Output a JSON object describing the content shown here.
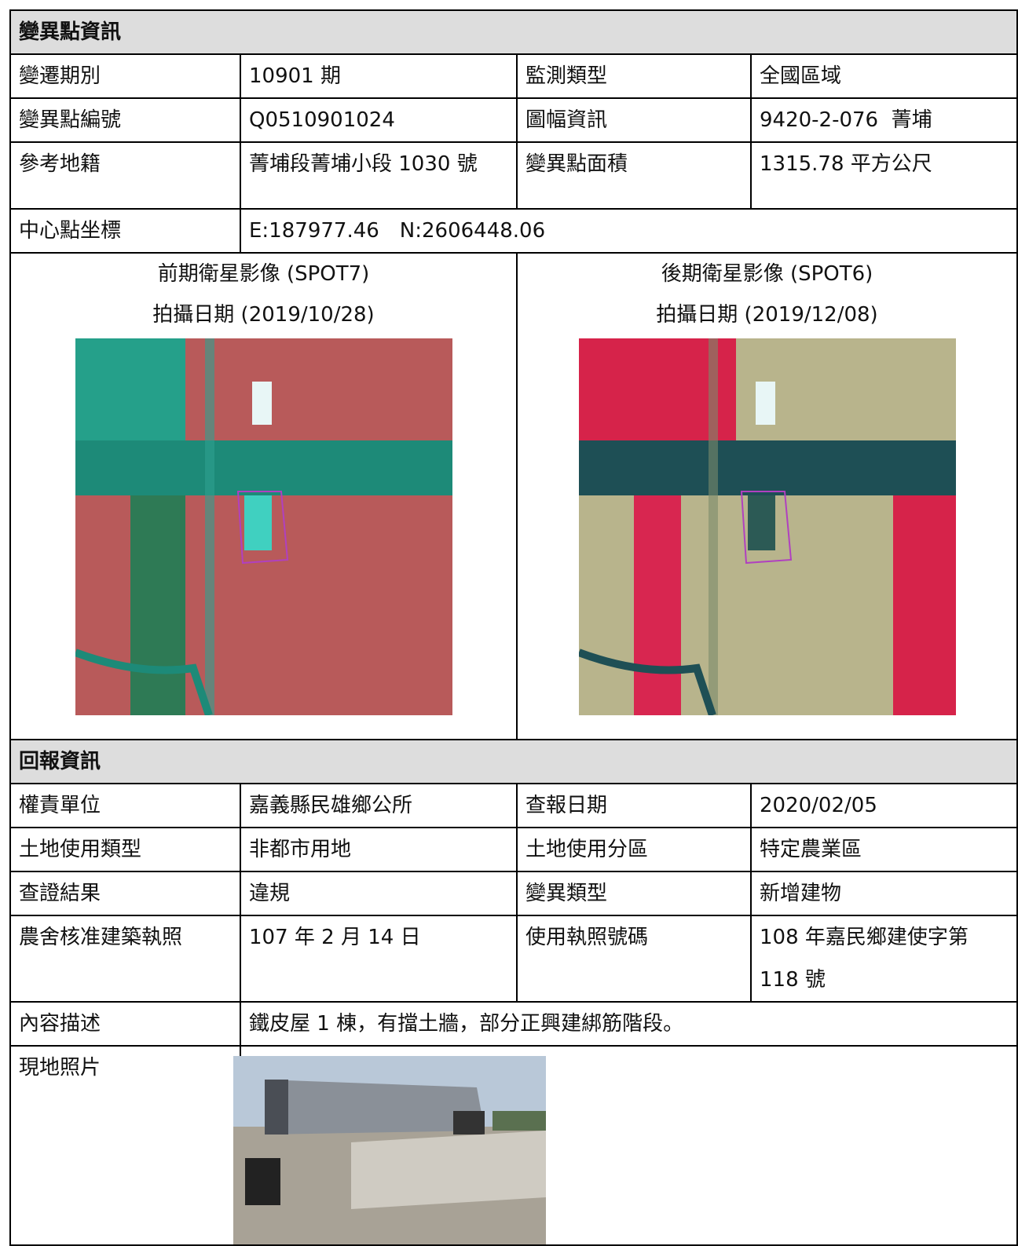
{
  "change_info": {
    "title": "變異點資訊",
    "rows": [
      [
        "變遷期別",
        "10901 期",
        "監測類型",
        "全國區域"
      ],
      [
        "變異點編號",
        "Q0510901024",
        "圖幅資訊",
        "9420-2-076  菁埔"
      ],
      [
        "參考地籍",
        "菁埔段菁埔小段 1030 號",
        "變異點面積",
        "1315.78 平方公尺"
      ]
    ],
    "center": {
      "label": "中心點坐標",
      "value": "E:187977.46　N:2606448.06"
    },
    "before": {
      "caption": "前期衛星影像 (SPOT7)",
      "date": "拍攝日期 (2019/10/28)"
    },
    "after": {
      "caption": "後期衛星影像 (SPOT6)",
      "date": "拍攝日期 (2019/12/08)"
    }
  },
  "report_info": {
    "title": "回報資訊",
    "rows": [
      [
        "權責單位",
        "嘉義縣民雄鄉公所",
        "查報日期",
        "2020/02/05"
      ],
      [
        "土地使用類型",
        "非都市用地",
        "土地使用分區",
        "特定農業區"
      ],
      [
        "查證結果",
        "違規",
        "變異類型",
        "新增建物"
      ],
      [
        "農舍核准建築執照",
        "107 年 2 月 14 日",
        "使用執照號碼",
        "108 年嘉民鄉建使字第 118 號"
      ]
    ],
    "description": {
      "label": "內容描述",
      "value": "鐵皮屋 1 棟，有擋土牆，部分正興建綁筋階段。"
    },
    "photo": {
      "label": "現地照片"
    }
  }
}
